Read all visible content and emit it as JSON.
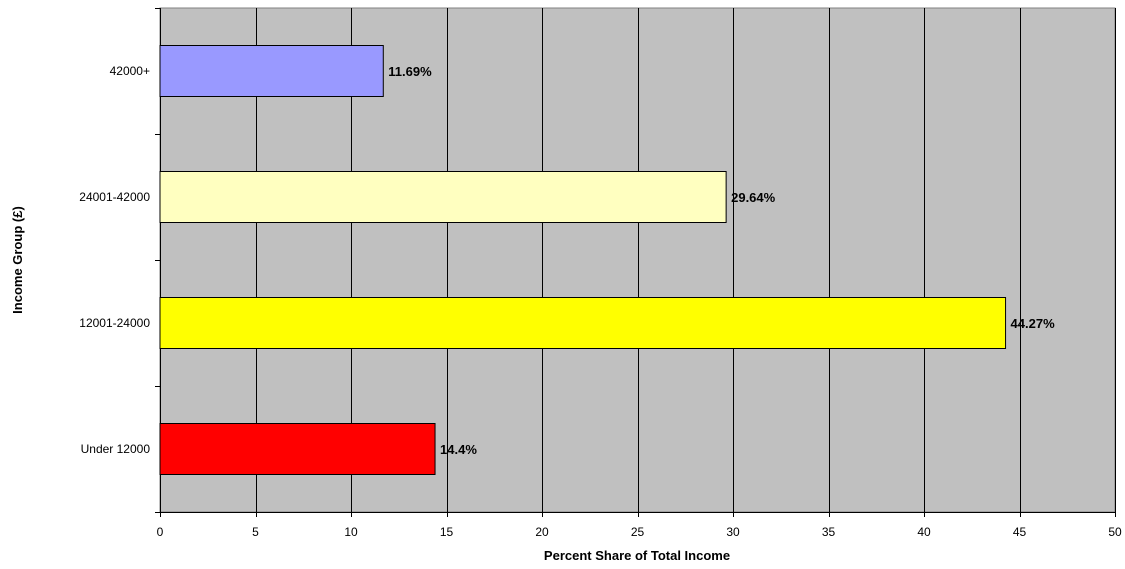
{
  "chart_data": {
    "type": "bar",
    "orientation": "horizontal",
    "categories": [
      "Under 12000",
      "12001-24000",
      "24001-42000",
      "42000+"
    ],
    "values": [
      14.4,
      44.27,
      29.64,
      11.69
    ],
    "data_labels": [
      "14.4%",
      "44.27%",
      "29.64%",
      "11.69%"
    ],
    "bar_colors": [
      "#ff0000",
      "#ffff00",
      "#ffffc0",
      "#9999ff"
    ],
    "title": "",
    "xlabel": "Percent Share of Total Income",
    "ylabel": "Income Group (£)",
    "xlim": [
      0,
      50
    ],
    "x_ticks": [
      0,
      5,
      10,
      15,
      20,
      25,
      30,
      35,
      40,
      45,
      50
    ],
    "grid": "vertical gridlines",
    "legend": "none",
    "plot_background": "#c0c0c0"
  }
}
